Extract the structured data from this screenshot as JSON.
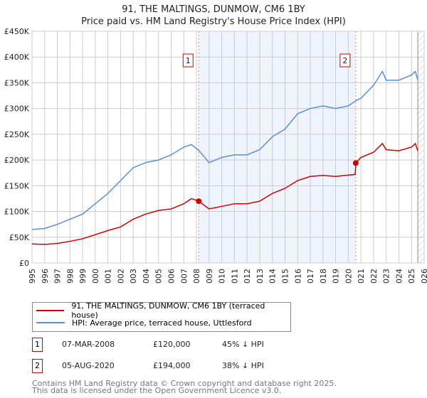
{
  "title": "91, THE MALTINGS, DUNMOW, CM6 1BY",
  "subtitle": "Price paid vs. HM Land Registry's House Price Index (HPI)",
  "chart_data": {
    "type": "line",
    "title": "91, THE MALTINGS, DUNMOW, CM6 1BY",
    "subtitle": "Price paid vs. HM Land Registry's House Price Index (HPI)",
    "xlim": [
      1995,
      2026
    ],
    "ylim": [
      0,
      450000
    ],
    "x_ticks": [
      "1995",
      "1996",
      "1997",
      "1998",
      "1999",
      "2000",
      "2001",
      "2002",
      "2003",
      "2004",
      "2005",
      "2006",
      "2007",
      "2008",
      "2009",
      "2010",
      "2011",
      "2012",
      "2013",
      "2014",
      "2015",
      "2016",
      "2017",
      "2018",
      "2019",
      "2020",
      "2021",
      "2022",
      "2023",
      "2024",
      "2025",
      "2026"
    ],
    "y_ticks": [
      {
        "v": 0,
        "label": "£0"
      },
      {
        "v": 50000,
        "label": "£50K"
      },
      {
        "v": 100000,
        "label": "£100K"
      },
      {
        "v": 150000,
        "label": "£150K"
      },
      {
        "v": 200000,
        "label": "£200K"
      },
      {
        "v": 250000,
        "label": "£250K"
      },
      {
        "v": 300000,
        "label": "£300K"
      },
      {
        "v": 350000,
        "label": "£350K"
      },
      {
        "v": 400000,
        "label": "£400K"
      },
      {
        "v": 450000,
        "label": "£450K"
      }
    ],
    "grid": true,
    "series": [
      {
        "name": "91, THE MALTINGS, DUNMOW, CM6 1BY (terraced house)",
        "color": "#cc0000",
        "x": [
          1995,
          1996,
          1997,
          1998,
          1999,
          2000,
          2001,
          2002,
          2003,
          2004,
          2005,
          2006,
          2007,
          2007.6,
          2008.18,
          2009,
          2010,
          2011,
          2012,
          2013,
          2014,
          2015,
          2016,
          2017,
          2018,
          2019,
          2020.55,
          2020.6,
          2021,
          2022,
          2022.7,
          2023,
          2024,
          2025,
          2025.3,
          2025.5
        ],
        "y": [
          37000,
          36000,
          38000,
          42000,
          47000,
          55000,
          63000,
          70000,
          85000,
          95000,
          102000,
          105000,
          115000,
          125000,
          120000,
          105000,
          110000,
          115000,
          115000,
          120000,
          135000,
          145000,
          160000,
          168000,
          170000,
          168000,
          172000,
          194000,
          205000,
          215000,
          232000,
          220000,
          218000,
          225000,
          232000,
          218000
        ]
      },
      {
        "name": "HPI: Average price, terraced house, Uttlesford",
        "color": "#5b8fd4",
        "x": [
          1995,
          1996,
          1997,
          1998,
          1999,
          2000,
          2001,
          2002,
          2003,
          2004,
          2005,
          2006,
          2007,
          2007.6,
          2008.2,
          2009,
          2010,
          2011,
          2012,
          2013,
          2014,
          2015,
          2016,
          2017,
          2018,
          2019,
          2020,
          2020.6,
          2021,
          2022,
          2022.7,
          2023,
          2024,
          2025,
          2025.3,
          2025.5
        ],
        "y": [
          65000,
          67000,
          75000,
          85000,
          95000,
          115000,
          135000,
          160000,
          185000,
          195000,
          200000,
          210000,
          225000,
          230000,
          218000,
          195000,
          205000,
          210000,
          210000,
          220000,
          245000,
          260000,
          290000,
          300000,
          305000,
          300000,
          305000,
          315000,
          320000,
          345000,
          372000,
          355000,
          355000,
          365000,
          372000,
          355000
        ]
      }
    ],
    "annotations": [
      {
        "label": "1",
        "x": 2008.18,
        "y": 120000
      },
      {
        "label": "2",
        "x": 2020.59,
        "y": 194000
      }
    ],
    "shaded_range": [
      2008.18,
      2020.59
    ],
    "hatched_from": 2025.5
  },
  "legend": {
    "red": "91, THE MALTINGS, DUNMOW, CM6 1BY (terraced house)",
    "blue": "HPI: Average price, terraced house, Uttlesford"
  },
  "sales": [
    {
      "num": "1",
      "date": "07-MAR-2008",
      "price": "£120,000",
      "hpi": "45% ↓ HPI"
    },
    {
      "num": "2",
      "date": "05-AUG-2020",
      "price": "£194,000",
      "hpi": "38% ↓ HPI"
    }
  ],
  "footer": [
    "Contains HM Land Registry data © Crown copyright and database right 2025.",
    "This data is licensed under the Open Government Licence v3.0."
  ]
}
